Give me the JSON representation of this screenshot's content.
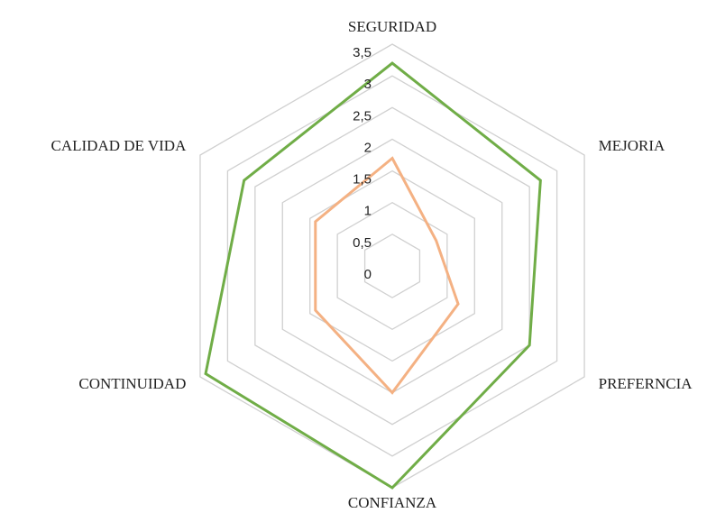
{
  "chart_data": {
    "type": "radar",
    "categories": [
      "SEGURIDAD",
      "MEJORIA",
      "PREFERNCIA",
      "CONFIANZA",
      "CONTINUIDAD",
      "CALIDAD DE VIDA"
    ],
    "series": [
      {
        "color": "#70ad47",
        "values": [
          3.2,
          2.7,
          2.5,
          3.5,
          3.4,
          2.7
        ]
      },
      {
        "color": "#f4b183",
        "values": [
          1.7,
          0.8,
          1.2,
          2.0,
          1.4,
          1.4
        ]
      }
    ],
    "ylim": [
      0,
      3.5
    ],
    "yticks": [
      0,
      {
        "value": 0.5,
        "label": "0,5"
      },
      1,
      {
        "value": 1.5,
        "label": "1,5"
      },
      2,
      {
        "value": 2.5,
        "label": "2,5"
      },
      3,
      {
        "value": 3.5,
        "label": "3,5"
      }
    ],
    "grid": true
  }
}
